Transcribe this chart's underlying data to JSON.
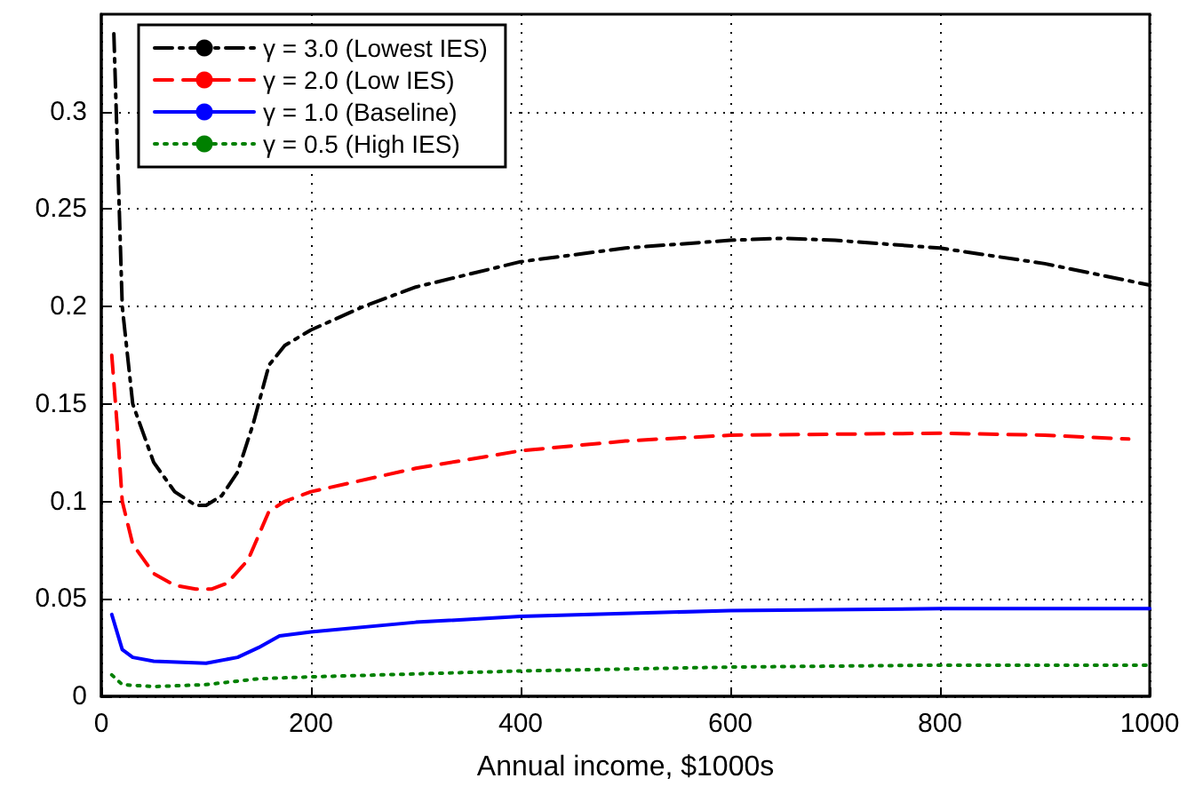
{
  "chart_data": {
    "type": "line",
    "xlabel": "Annual income, $1000s",
    "xlim": [
      0,
      1000
    ],
    "xticks": [
      0,
      200,
      400,
      600,
      800,
      1000
    ],
    "ylim": [
      0,
      0.35
    ],
    "yticks": [
      0,
      0.05,
      0.1,
      0.15,
      0.2,
      0.25,
      0.3
    ],
    "grid": true,
    "legend": "top left",
    "marker": "none",
    "series": [
      {
        "name": "γ = 3.0 (Lowest IES)",
        "color": "#000000",
        "line_style": "dashdot",
        "x": [
          12,
          20,
          30,
          50,
          70,
          90,
          100,
          115,
          130,
          145,
          160,
          175,
          200,
          250,
          300,
          400,
          500,
          600,
          650,
          700,
          800,
          900,
          1000
        ],
        "values": [
          0.34,
          0.2,
          0.15,
          0.12,
          0.105,
          0.098,
          0.098,
          0.103,
          0.115,
          0.14,
          0.17,
          0.18,
          0.188,
          0.2,
          0.21,
          0.223,
          0.23,
          0.234,
          0.235,
          0.234,
          0.23,
          0.222,
          0.211
        ]
      },
      {
        "name": "γ = 2.0 (Low IES)",
        "color": "#ff0000",
        "line_style": "dashed",
        "x": [
          10,
          15,
          20,
          30,
          50,
          70,
          90,
          105,
          120,
          140,
          160,
          175,
          200,
          300,
          400,
          500,
          600,
          800,
          900,
          980
        ],
        "values": [
          0.175,
          0.14,
          0.1,
          0.078,
          0.063,
          0.057,
          0.055,
          0.055,
          0.058,
          0.07,
          0.095,
          0.1,
          0.105,
          0.117,
          0.126,
          0.131,
          0.134,
          0.135,
          0.134,
          0.132
        ]
      },
      {
        "name": "γ = 1.0 (Baseline)",
        "color": "#0000ff",
        "line_style": "solid",
        "x": [
          10,
          20,
          30,
          50,
          100,
          130,
          150,
          170,
          200,
          300,
          400,
          600,
          800,
          1000
        ],
        "values": [
          0.042,
          0.024,
          0.02,
          0.018,
          0.017,
          0.02,
          0.025,
          0.031,
          0.033,
          0.038,
          0.041,
          0.044,
          0.045,
          0.045
        ]
      },
      {
        "name": "γ = 0.5 (High IES)",
        "color": "#008000",
        "line_style": "dotted",
        "x": [
          10,
          20,
          50,
          100,
          150,
          200,
          400,
          600,
          800,
          1000
        ],
        "values": [
          0.011,
          0.006,
          0.005,
          0.006,
          0.009,
          0.01,
          0.013,
          0.015,
          0.016,
          0.016
        ]
      }
    ]
  }
}
